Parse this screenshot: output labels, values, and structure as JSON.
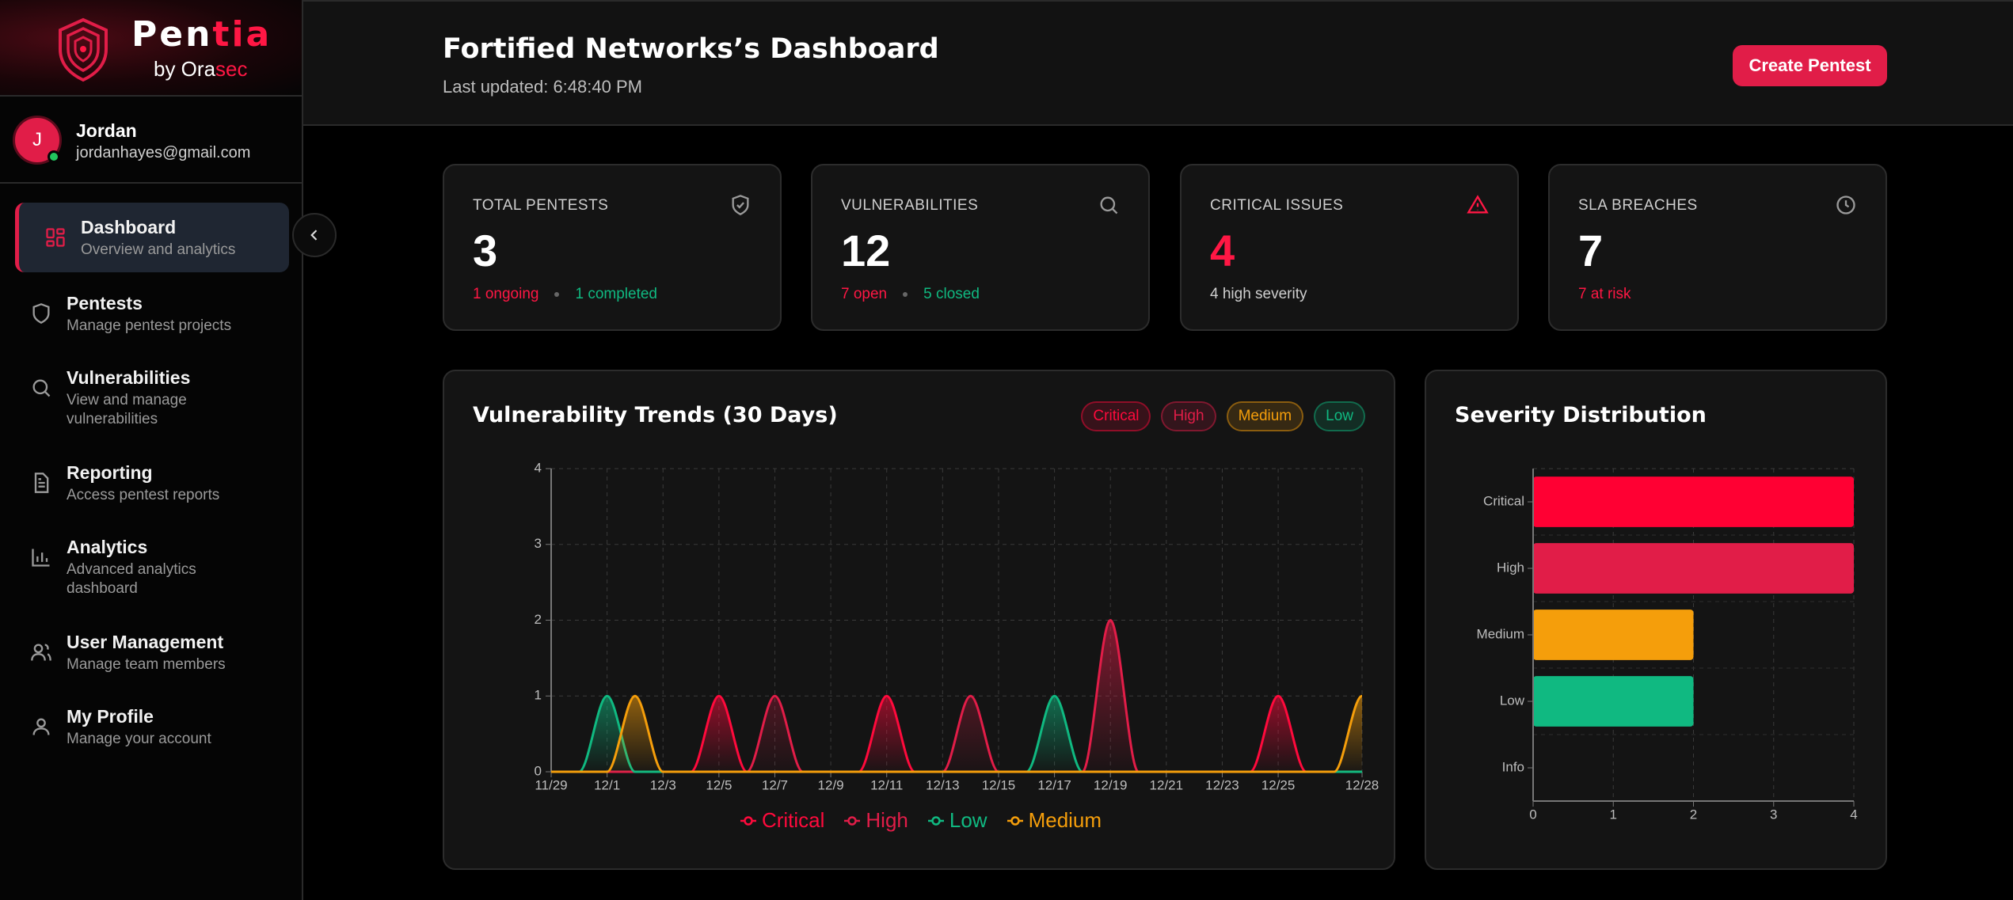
{
  "sidebar": {
    "brand": [
      "Pen",
      "tia"
    ],
    "tagline": [
      "by Ora",
      "sec"
    ],
    "user": {
      "initial": "J",
      "name": "Jordan",
      "email": "jordanhayes@gmail.com"
    },
    "nav": [
      {
        "title": "Dashboard",
        "subtitle": "Overview and analytics"
      },
      {
        "title": "Pentests",
        "subtitle": "Manage pentest projects"
      },
      {
        "title": "Vulnerabilities",
        "subtitle": "View and manage vulnerabilities"
      },
      {
        "title": "Reporting",
        "subtitle": "Access pentest reports"
      },
      {
        "title": "Analytics",
        "subtitle": "Advanced analytics dashboard"
      },
      {
        "title": "User Management",
        "subtitle": "Manage team members"
      },
      {
        "title": "My Profile",
        "subtitle": "Manage your account"
      }
    ]
  },
  "header": {
    "title": "Fortified Networks’s Dashboard",
    "last_updated": "Last updated: 6:48:40 PM",
    "button": "Create Pentest"
  },
  "stats": [
    {
      "label": "TOTAL PENTESTS",
      "value": 3,
      "details": [
        "1 ongoing",
        "1 completed"
      ]
    },
    {
      "label": "VULNERABILITIES",
      "value": 12,
      "details": [
        "7 open",
        "5 closed"
      ]
    },
    {
      "label": "CRITICAL ISSUES",
      "value": 4,
      "details": [
        "4 high severity"
      ]
    },
    {
      "label": "SLA BREACHES",
      "value": 7,
      "details": [
        "7 at risk"
      ]
    }
  ],
  "trend_filters": [
    "Critical",
    "High",
    "Medium",
    "Low"
  ],
  "chart_data": [
    {
      "type": "line",
      "title": "Vulnerability Trends (30 Days)",
      "categories": [
        "11/29",
        null,
        "12/1",
        null,
        "12/3",
        null,
        "12/5",
        null,
        "12/7",
        null,
        "12/9",
        null,
        "12/11",
        null,
        "12/13",
        null,
        "12/15",
        null,
        "12/17",
        null,
        "12/19",
        null,
        "12/21",
        null,
        "12/23",
        null,
        "12/25",
        null,
        null,
        "12/28"
      ],
      "series": [
        {
          "name": "Critical",
          "color": "#ff0a3c",
          "values": [
            0,
            0,
            0,
            0,
            0,
            0,
            1,
            0,
            0,
            0,
            0,
            0,
            1,
            0,
            0,
            0,
            0,
            0,
            0,
            0,
            0,
            0,
            0,
            0,
            0,
            0,
            1,
            0,
            0,
            0
          ]
        },
        {
          "name": "High",
          "color": "#e11d48",
          "values": [
            0,
            0,
            0,
            0,
            0,
            0,
            0,
            0,
            1,
            0,
            0,
            0,
            0,
            0,
            0,
            1,
            0,
            0,
            0,
            0,
            2,
            0,
            0,
            0,
            0,
            0,
            0,
            0,
            0,
            0
          ]
        },
        {
          "name": "Low",
          "color": "#10b981",
          "values": [
            0,
            0,
            1,
            0,
            0,
            0,
            0,
            0,
            0,
            0,
            0,
            0,
            0,
            0,
            0,
            0,
            0,
            0,
            1,
            0,
            0,
            0,
            0,
            0,
            0,
            0,
            0,
            0,
            0,
            0
          ]
        },
        {
          "name": "Medium",
          "color": "#f59e0b",
          "values": [
            0,
            0,
            0,
            1,
            0,
            0,
            0,
            0,
            0,
            0,
            0,
            0,
            0,
            0,
            0,
            0,
            0,
            0,
            0,
            0,
            0,
            0,
            0,
            0,
            0,
            0,
            0,
            0,
            0,
            1
          ]
        }
      ],
      "ylim": [
        0,
        4
      ],
      "yticks": [
        0,
        1,
        2,
        3,
        4
      ],
      "grid": true
    },
    {
      "type": "hbar",
      "title": "Severity Distribution",
      "categories": [
        "Critical",
        "High",
        "Medium",
        "Low",
        "Info"
      ],
      "values": [
        4,
        4,
        2,
        2,
        0
      ],
      "colors": [
        "#ff0033",
        "#e11d48",
        "#f59e0b",
        "#10b981",
        "#3b82f6"
      ],
      "xlim": [
        0,
        4
      ],
      "xticks": [
        0,
        1,
        2,
        3,
        4
      ],
      "grid": true
    }
  ]
}
